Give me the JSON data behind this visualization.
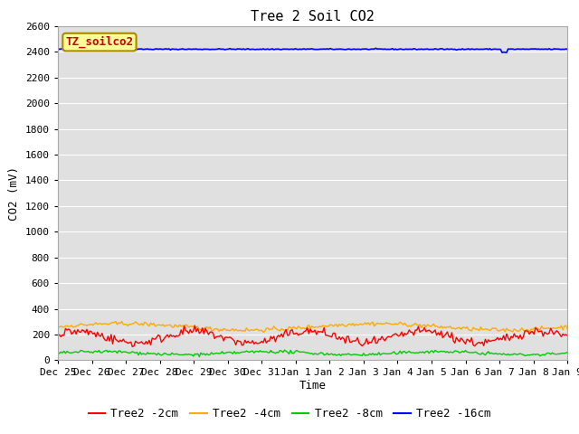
{
  "title": "Tree 2 Soil CO2",
  "ylabel": "CO2 (mV)",
  "xlabel": "Time",
  "ylim": [
    0,
    2600
  ],
  "yticks": [
    0,
    200,
    400,
    600,
    800,
    1000,
    1200,
    1400,
    1600,
    1800,
    2000,
    2200,
    2400,
    2600
  ],
  "x_labels": [
    "Dec 25",
    "Dec 26",
    "Dec 27",
    "Dec 28",
    "Dec 29",
    "Dec 30",
    "Dec 31",
    "Jan 1",
    "Jan 2",
    "Jan 3",
    "Jan 4",
    "Jan 5",
    "Jan 6",
    "Jan 7",
    "Jan 8",
    "Jan 9"
  ],
  "num_points": 336,
  "blue_base": 2420,
  "orange_base": 260,
  "red_base": 180,
  "green_base": 55,
  "legend_label": "TZ_soilco2",
  "line_colors": [
    "#ff0000",
    "#ffaa00",
    "#00cc00",
    "#0000ff"
  ],
  "line_labels": [
    "Tree2 -2cm",
    "Tree2 -4cm",
    "Tree2 -8cm",
    "Tree2 -16cm"
  ],
  "bg_color": "#e0e0e0",
  "legend_box_color": "#ffff99",
  "legend_box_edge": "#aa8800",
  "title_fontsize": 11,
  "axis_fontsize": 9,
  "tick_fontsize": 8,
  "legend_fontsize": 9
}
